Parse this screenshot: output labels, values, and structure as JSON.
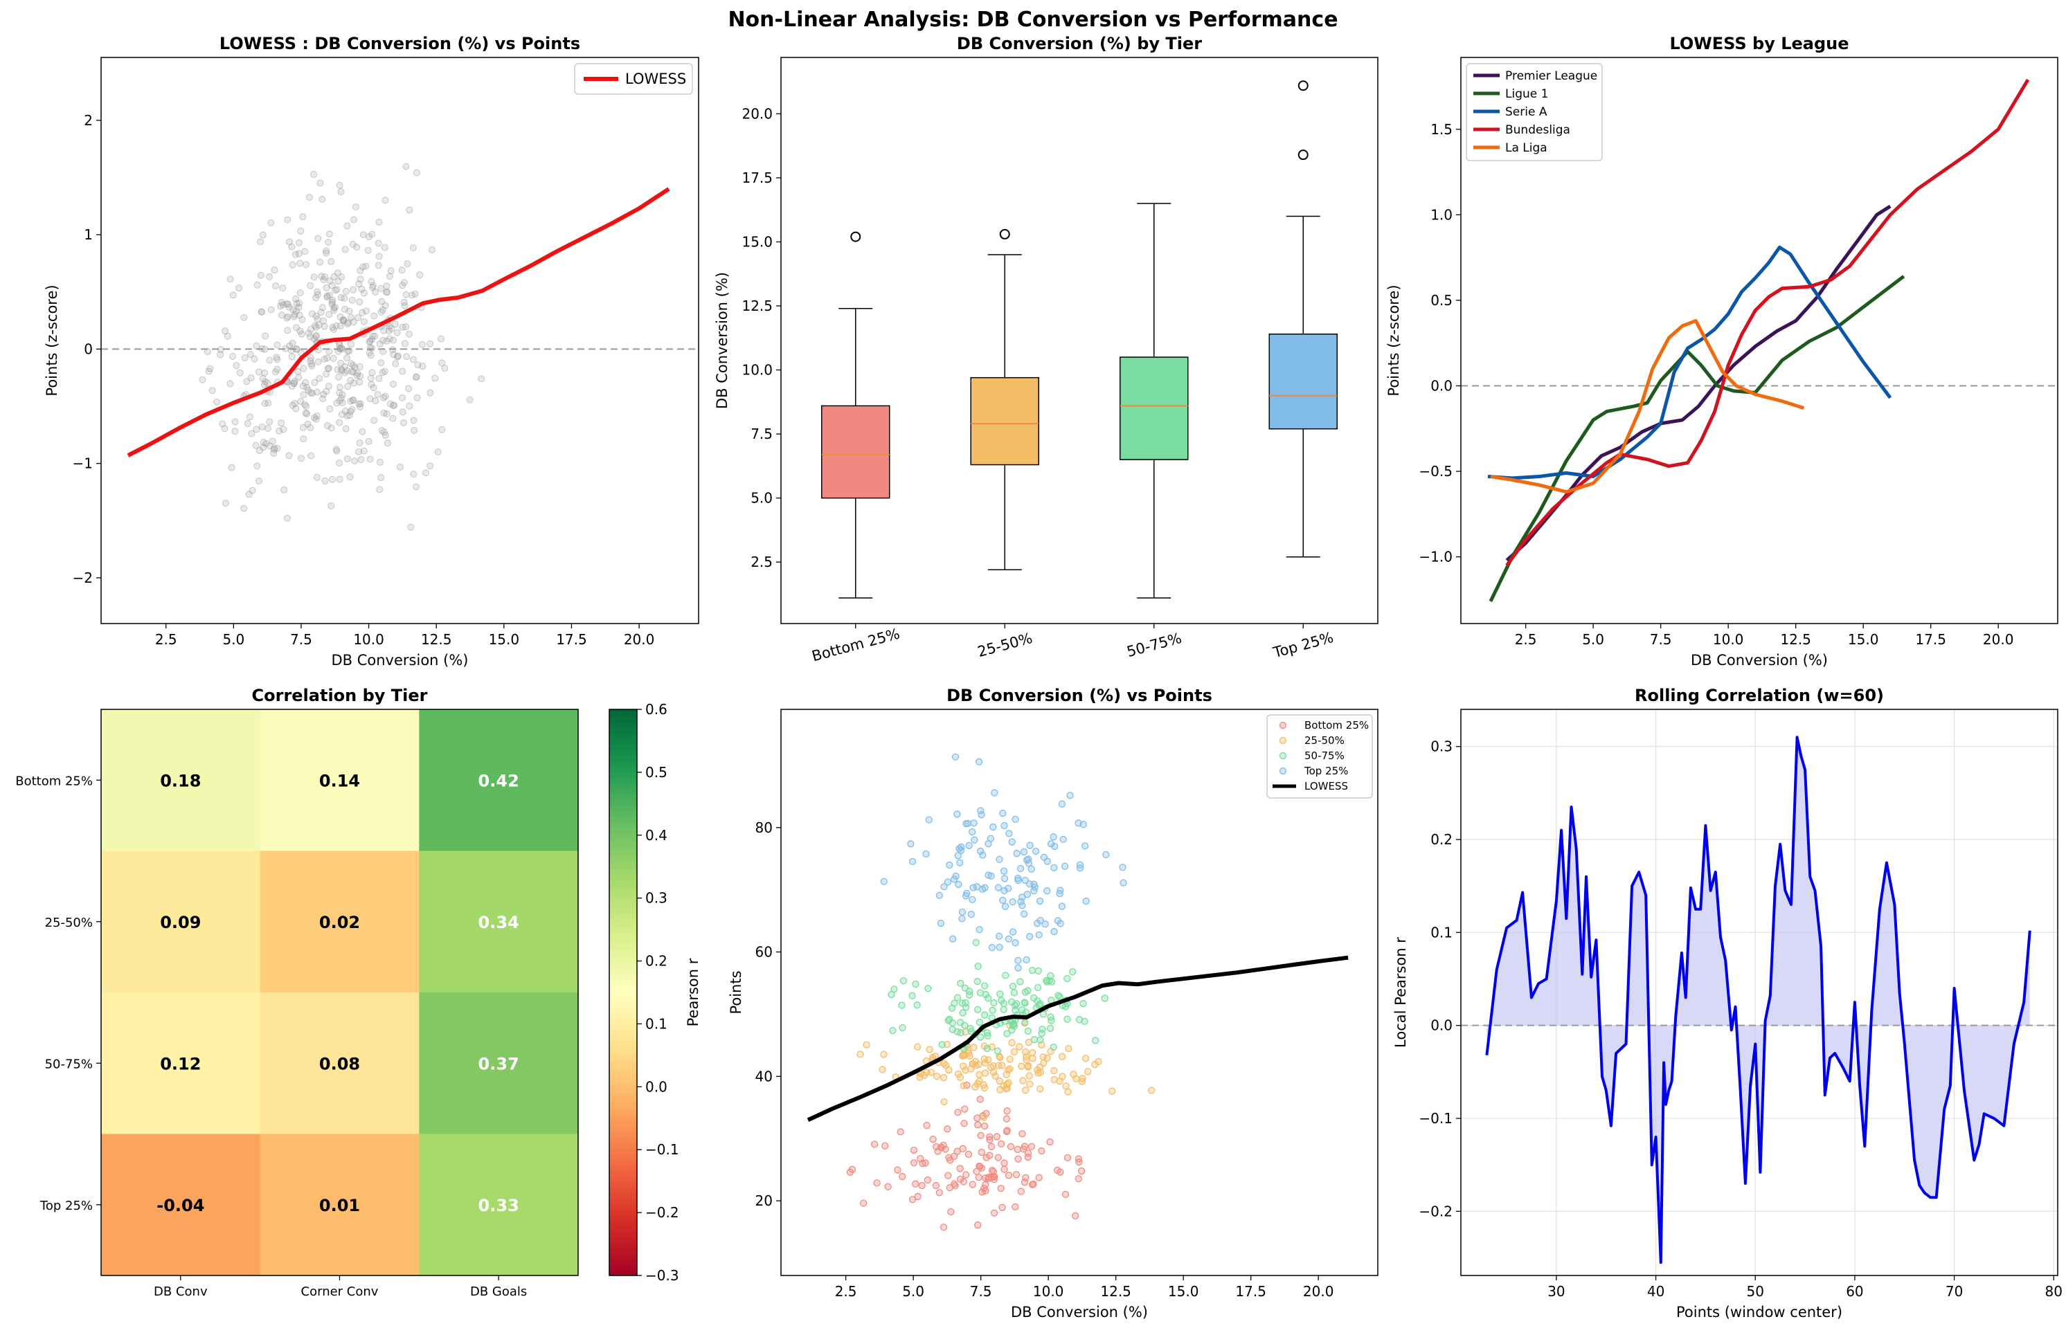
{
  "suptitle": "Non-Linear Analysis: DB Conversion vs Performance",
  "colors": {
    "lowess_red": "#ee1111",
    "lowess_black": "#000000",
    "zero_line": "#999999",
    "scatter_gray": "#9a9a9a",
    "rolling_line": "#0000ee",
    "rolling_fill": "#c8c8f4",
    "tiers": [
      "#f08a80",
      "#f5bc66",
      "#7adc9f",
      "#82bde8"
    ],
    "median": "#f08a3a",
    "leagues": [
      "#3b1457",
      "#1e5a1e",
      "#0b56a6",
      "#d2121e",
      "#f06a0e"
    ],
    "heat_text_dark": "#000000",
    "heat_text_light": "#ffffff"
  },
  "chart_data": [
    {
      "type": "scatter",
      "title": "LOWESS : DB Conversion (%) vs Points",
      "xlabel": "DB Conversion (%)",
      "ylabel": "Points (z-score)",
      "xlim": [
        0.1,
        22.2
      ],
      "ylim": [
        -2.4,
        2.55
      ],
      "xticks": [
        2.5,
        5.0,
        7.5,
        10.0,
        12.5,
        15.0,
        17.5,
        20.0
      ],
      "yticks": [
        -2,
        -1,
        0,
        1,
        2
      ],
      "reference_line_y": 0,
      "legend": [
        "LOWESS"
      ],
      "legend_position": "top-right",
      "point_count": 500,
      "lowess": {
        "x": [
          1.1,
          2.0,
          3.0,
          4.0,
          5.0,
          6.0,
          6.8,
          7.5,
          8.2,
          8.7,
          9.3,
          10.2,
          11.0,
          12.0,
          12.6,
          13.3,
          14.2,
          15.0,
          16.0,
          17.0,
          18.0,
          19.0,
          20.0,
          21.1
        ],
        "y": [
          -0.93,
          -0.82,
          -0.69,
          -0.57,
          -0.47,
          -0.38,
          -0.29,
          -0.08,
          0.06,
          0.08,
          0.09,
          0.19,
          0.28,
          0.4,
          0.43,
          0.45,
          0.51,
          0.61,
          0.73,
          0.86,
          0.98,
          1.1,
          1.23,
          1.4
        ]
      }
    },
    {
      "type": "box",
      "title": "DB Conversion (%) by Tier",
      "ylabel": "DB Conversion (%)",
      "ylim": [
        0.1,
        22.2
      ],
      "yticks": [
        2.5,
        5.0,
        7.5,
        10.0,
        12.5,
        15.0,
        17.5,
        20.0
      ],
      "categories": [
        "Bottom 25%",
        "25-50%",
        "50-75%",
        "Top 25%"
      ],
      "boxes": [
        {
          "whisker_low": 1.1,
          "q1": 5.0,
          "median": 6.7,
          "q3": 8.6,
          "whisker_high": 12.4,
          "outliers": [
            15.2
          ]
        },
        {
          "whisker_low": 2.2,
          "q1": 6.3,
          "median": 7.9,
          "q3": 9.7,
          "whisker_high": 14.5,
          "outliers": [
            15.3
          ]
        },
        {
          "whisker_low": 1.1,
          "q1": 6.5,
          "median": 8.6,
          "q3": 10.5,
          "whisker_high": 16.5,
          "outliers": []
        },
        {
          "whisker_low": 2.7,
          "q1": 7.7,
          "median": 9.0,
          "q3": 11.4,
          "whisker_high": 16.0,
          "outliers": [
            18.4,
            21.1
          ]
        }
      ]
    },
    {
      "type": "line",
      "title": "LOWESS by League",
      "xlabel": "DB Conversion (%)",
      "ylabel": "Points (z-score)",
      "xlim": [
        0.1,
        22.2
      ],
      "ylim": [
        -1.39,
        1.92
      ],
      "xticks": [
        2.5,
        5.0,
        7.5,
        10.0,
        12.5,
        15.0,
        17.5,
        20.0
      ],
      "yticks": [
        -1.0,
        -0.5,
        0.0,
        0.5,
        1.0,
        1.5
      ],
      "reference_line_y": 0,
      "legend_position": "top-left",
      "series": [
        {
          "name": "Premier League",
          "x": [
            1.8,
            2.5,
            3.2,
            4.0,
            4.6,
            5.3,
            6.0,
            6.8,
            7.5,
            8.3,
            8.9,
            9.5,
            10.2,
            11.0,
            11.8,
            12.5,
            13.3,
            14.0,
            14.8,
            15.5,
            16.0
          ],
          "y": [
            -1.02,
            -0.92,
            -0.79,
            -0.64,
            -0.52,
            -0.41,
            -0.36,
            -0.27,
            -0.22,
            -0.2,
            -0.12,
            0.0,
            0.12,
            0.23,
            0.32,
            0.38,
            0.52,
            0.68,
            0.85,
            1.0,
            1.05
          ]
        },
        {
          "name": "Ligue 1",
          "x": [
            1.2,
            2.0,
            3.0,
            4.0,
            5.0,
            5.5,
            6.5,
            7.0,
            7.5,
            8.5,
            9.0,
            9.6,
            10.2,
            11.0,
            12.0,
            13.0,
            14.0,
            15.0,
            16.5
          ],
          "y": [
            -1.26,
            -1.0,
            -0.74,
            -0.44,
            -0.2,
            -0.15,
            -0.12,
            -0.1,
            0.03,
            0.2,
            0.12,
            0.0,
            -0.03,
            -0.04,
            0.15,
            0.26,
            0.34,
            0.46,
            0.64
          ]
        },
        {
          "name": "Serie A",
          "x": [
            1.1,
            2.0,
            3.0,
            4.0,
            5.0,
            6.0,
            7.0,
            7.5,
            8.0,
            8.5,
            9.0,
            9.5,
            10.0,
            10.5,
            11.0,
            11.5,
            11.9,
            12.3,
            13.0,
            14.0,
            15.0,
            16.0
          ],
          "y": [
            -0.53,
            -0.54,
            -0.53,
            -0.51,
            -0.53,
            -0.43,
            -0.3,
            -0.22,
            0.08,
            0.22,
            0.27,
            0.33,
            0.42,
            0.55,
            0.63,
            0.72,
            0.81,
            0.77,
            0.6,
            0.37,
            0.14,
            -0.07
          ]
        },
        {
          "name": "Bundesliga",
          "x": [
            1.8,
            2.5,
            3.5,
            4.5,
            5.5,
            6.0,
            7.0,
            7.8,
            8.5,
            9.0,
            9.5,
            10.0,
            10.5,
            11.0,
            11.5,
            12.0,
            13.0,
            13.8,
            14.5,
            15.0,
            16.0,
            17.0,
            18.0,
            19.0,
            20.0,
            21.1
          ],
          "y": [
            -1.05,
            -0.9,
            -0.72,
            -0.58,
            -0.45,
            -0.4,
            -0.43,
            -0.47,
            -0.45,
            -0.32,
            -0.15,
            0.12,
            0.3,
            0.44,
            0.52,
            0.57,
            0.58,
            0.62,
            0.7,
            0.8,
            1.0,
            1.15,
            1.26,
            1.37,
            1.5,
            1.79
          ]
        },
        {
          "name": "La Liga",
          "x": [
            1.2,
            2.0,
            3.0,
            4.0,
            5.0,
            6.0,
            6.7,
            7.2,
            7.8,
            8.3,
            8.8,
            9.3,
            9.8,
            10.3,
            11.0,
            12.0,
            12.8
          ],
          "y": [
            -0.53,
            -0.55,
            -0.58,
            -0.62,
            -0.57,
            -0.4,
            -0.15,
            0.1,
            0.28,
            0.35,
            0.38,
            0.23,
            0.08,
            0.0,
            -0.05,
            -0.09,
            -0.13
          ]
        }
      ]
    },
    {
      "type": "heatmap",
      "title": "Correlation by Tier",
      "rows": [
        "Bottom 25%",
        "25-50%",
        "50-75%",
        "Top 25%"
      ],
      "columns": [
        "DB Conv",
        "Corner Conv",
        "DB Goals"
      ],
      "values": [
        [
          0.18,
          0.14,
          0.42
        ],
        [
          0.09,
          0.02,
          0.34
        ],
        [
          0.12,
          0.08,
          0.37
        ],
        [
          -0.04,
          0.01,
          0.33
        ]
      ],
      "colorbar_label": "Pearson r",
      "vmin": -0.3,
      "vmax": 0.6,
      "colorbar_ticks": [
        -0.3,
        -0.2,
        -0.1,
        0.0,
        0.1,
        0.2,
        0.3,
        0.4,
        0.5,
        0.6
      ],
      "colorbar_tick_labels": [
        "−0.3",
        "−0.2",
        "−0.1",
        "0.0",
        "0.1",
        "0.2",
        "0.3",
        "0.4",
        "0.5",
        "0.6"
      ],
      "cell_colors": [
        [
          "#f2f8b0",
          "#fcfdbd",
          "#5fba5d"
        ],
        [
          "#fdeb9b",
          "#fdcd7c",
          "#a5d86a"
        ],
        [
          "#fdf2a6",
          "#fee599",
          "#84c864"
        ],
        [
          "#fba45d",
          "#fdbd6d",
          "#a8d96b"
        ]
      ]
    },
    {
      "type": "scatter",
      "title": "DB Conversion (%) vs Points",
      "xlabel": "DB Conversion (%)",
      "ylabel": "Points",
      "xlim": [
        0.1,
        22.2
      ],
      "ylim": [
        8,
        99
      ],
      "xticks": [
        2.5,
        5.0,
        7.5,
        10.0,
        12.5,
        15.0,
        17.5,
        20.0
      ],
      "yticks": [
        20,
        40,
        60,
        80
      ],
      "legend": [
        "Bottom 25%",
        "25-50%",
        "50-75%",
        "Top 25%",
        "LOWESS"
      ],
      "legend_position": "top-right",
      "tier_ranges": [
        [
          12,
          40
        ],
        [
          33,
          50
        ],
        [
          40,
          62
        ],
        [
          50,
          95
        ]
      ],
      "lowess": {
        "x": [
          1.1,
          2.0,
          3.0,
          4.0,
          5.0,
          6.0,
          7.0,
          7.6,
          8.2,
          8.7,
          9.2,
          10.0,
          11.0,
          12.0,
          12.6,
          13.3,
          14.0,
          15.0,
          16.0,
          17.0,
          18.0,
          19.0,
          20.0,
          21.1
        ],
        "y": [
          33,
          34.8,
          36.6,
          38.5,
          40.6,
          42.8,
          45.5,
          48.0,
          49.2,
          49.6,
          49.5,
          51.3,
          52.8,
          54.6,
          55.0,
          54.8,
          55.2,
          55.7,
          56.2,
          56.7,
          57.3,
          57.9,
          58.5,
          59.1
        ]
      }
    },
    {
      "type": "line",
      "title": "Rolling Correlation (w=60)",
      "xlabel": "Points (window center)",
      "ylabel": "Local Pearson r",
      "xlim": [
        20.4,
        80.4
      ],
      "ylim": [
        -0.269,
        0.34
      ],
      "xticks": [
        30,
        40,
        50,
        60,
        70,
        80
      ],
      "yticks": [
        -0.2,
        -0.1,
        0.0,
        0.1,
        0.2,
        0.3
      ],
      "yticklabels": [
        "−0.2",
        "−0.1",
        "0.0",
        "0.1",
        "0.2",
        "0.3"
      ],
      "reference_line_y": 0,
      "grid": true,
      "x": [
        23.0,
        24.0,
        25.0,
        26.0,
        26.6,
        27.5,
        28.2,
        29.0,
        30.0,
        30.5,
        31.0,
        31.5,
        32.0,
        32.6,
        33.0,
        33.5,
        34.0,
        34.6,
        35.0,
        35.5,
        36.0,
        37.0,
        37.6,
        38.3,
        39.0,
        39.6,
        40.0,
        40.5,
        40.8,
        41.0,
        41.3,
        41.6,
        42.0,
        42.6,
        43.0,
        43.5,
        44.0,
        44.5,
        45.0,
        45.5,
        46.0,
        46.5,
        47.0,
        47.6,
        48.0,
        48.5,
        49.0,
        49.5,
        50.0,
        50.5,
        51.0,
        51.5,
        52.0,
        52.5,
        53.0,
        53.6,
        54.2,
        54.6,
        55.0,
        55.5,
        56.0,
        56.6,
        57.0,
        57.5,
        58.0,
        58.8,
        59.5,
        60.0,
        60.5,
        61.0,
        61.7,
        62.5,
        63.2,
        64.0,
        64.5,
        65.0,
        66.0,
        66.5,
        67.0,
        67.6,
        68.2,
        69.0,
        69.6,
        70.0,
        71.0,
        72.0,
        72.5,
        73.0,
        74.0,
        75.0,
        76.0,
        77.0,
        77.6
      ],
      "y": [
        -0.032,
        0.06,
        0.105,
        0.113,
        0.143,
        0.03,
        0.045,
        0.05,
        0.134,
        0.21,
        0.115,
        0.235,
        0.19,
        0.055,
        0.16,
        0.052,
        0.092,
        -0.055,
        -0.07,
        -0.108,
        -0.03,
        -0.02,
        0.15,
        0.165,
        0.14,
        -0.15,
        -0.12,
        -0.255,
        -0.04,
        -0.085,
        -0.07,
        -0.06,
        0.01,
        0.078,
        0.03,
        0.148,
        0.125,
        0.125,
        0.215,
        0.145,
        0.165,
        0.095,
        0.07,
        -0.005,
        0.02,
        -0.07,
        -0.17,
        -0.065,
        -0.02,
        -0.158,
        0.005,
        0.032,
        0.15,
        0.195,
        0.145,
        0.13,
        0.31,
        0.29,
        0.275,
        0.16,
        0.145,
        0.085,
        -0.075,
        -0.035,
        -0.03,
        -0.045,
        -0.06,
        0.025,
        -0.065,
        -0.13,
        0.015,
        0.125,
        0.175,
        0.13,
        0.035,
        -0.02,
        -0.145,
        -0.172,
        -0.18,
        -0.185,
        -0.185,
        -0.09,
        -0.065,
        0.04,
        -0.07,
        -0.145,
        -0.128,
        -0.095,
        -0.1,
        -0.108,
        -0.02,
        0.025,
        0.102
      ]
    }
  ]
}
